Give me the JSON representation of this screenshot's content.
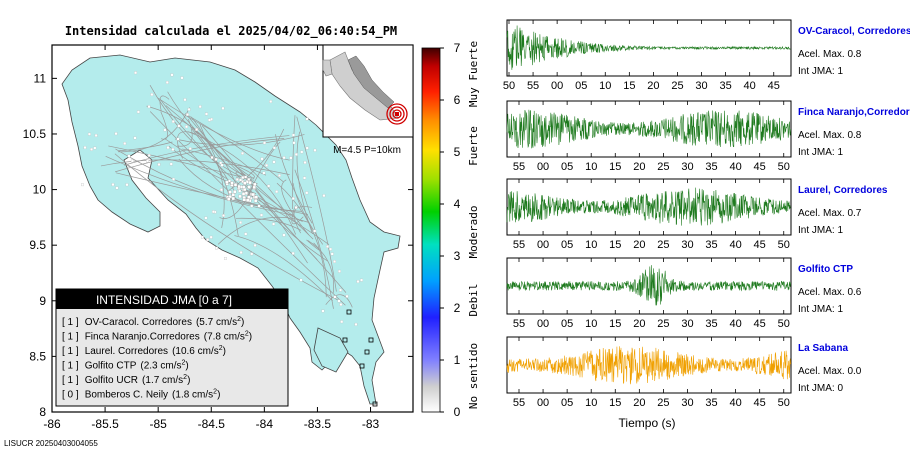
{
  "map": {
    "title": "Intensidad calculada el 2025/04/02_06:40:54_PM",
    "footer_id": "LISUCR 20250403004055",
    "x_ticks": [
      "-86",
      "-85.5",
      "-85",
      "-84.5",
      "-84",
      "-83.5",
      "-83"
    ],
    "y_ticks": [
      "11",
      "10.5",
      "10",
      "9.5",
      "9",
      "8.5",
      "8"
    ],
    "inset_label": "M=4.5 P=10km",
    "colorbar": {
      "ticks": [
        "7",
        "6",
        "5",
        "4",
        "3",
        "2",
        "1",
        "0"
      ],
      "categories": [
        "Muy Fuerte",
        "Fuerte",
        "Moderado",
        "Debil",
        "No sentido"
      ]
    },
    "legend": {
      "title": "INTENSIDAD JMA [0 a 7]",
      "items": [
        {
          "int": "[ 1 ]",
          "name": "OV-Caracol. Corredores",
          "accel": "(5.7 cm/s",
          "sup": "2",
          "close": ")"
        },
        {
          "int": "[ 1 ]",
          "name": "Finca Naranjo.Corredores",
          "accel": "(7.8 cm/s",
          "sup": "2",
          "close": ")"
        },
        {
          "int": "[ 1 ]",
          "name": "Laurel. Corredores",
          "accel": "(10.6 cm/s",
          "sup": "2",
          "close": ")"
        },
        {
          "int": "[ 1 ]",
          "name": "Golfito CTP",
          "accel": "(2.3 cm/s",
          "sup": "2",
          "close": ")"
        },
        {
          "int": "[ 1 ]",
          "name": "Golfito UCR",
          "accel": "(1.7 cm/s",
          "sup": "2",
          "close": ")"
        },
        {
          "int": "[ 0 ]",
          "name": "Bomberos C. Neily",
          "accel": "(1.8 cm/s",
          "sup": "2",
          "close": ")"
        }
      ]
    },
    "colors": {
      "land": "#b4ecec",
      "road": "#9a9a9a",
      "station": "#000000",
      "epicenter": "#d00000"
    }
  },
  "traces": {
    "xlabel": "Tiempo (s)",
    "stations": [
      {
        "name": "OV-Caracol, Corredores",
        "accel": "Acel. Max. 0.8",
        "int": "Int JMA: 1",
        "color": "#1e7a1e",
        "ticks": [
          "50",
          "55",
          "00",
          "05",
          "10",
          "15",
          "20",
          "25",
          "30",
          "35",
          "40",
          "45"
        ],
        "tick_start": 50,
        "amp_profile": "decay"
      },
      {
        "name": "Finca Naranjo,Corredores",
        "accel": "Acel. Max. 0.8",
        "int": "Int JMA: 1",
        "color": "#1e7a1e",
        "ticks": [
          "55",
          "00",
          "05",
          "10",
          "15",
          "20",
          "25",
          "30",
          "35",
          "40",
          "45",
          "50"
        ],
        "tick_start": 55,
        "amp_profile": "steady"
      },
      {
        "name": "Laurel, Corredores",
        "accel": "Acel. Max. 0.7",
        "int": "Int JMA: 1",
        "color": "#1e7a1e",
        "ticks": [
          "55",
          "00",
          "05",
          "10",
          "15",
          "20",
          "25",
          "30",
          "35",
          "40",
          "45",
          "50"
        ],
        "tick_start": 55,
        "amp_profile": "steady"
      },
      {
        "name": "Golfito CTP",
        "accel": "Acel. Max. 0.6",
        "int": "Int JMA: 1",
        "color": "#1e7a1e",
        "ticks": [
          "55",
          "00",
          "05",
          "10",
          "15",
          "20",
          "25",
          "30",
          "35",
          "40",
          "45",
          "50"
        ],
        "tick_start": 55,
        "amp_profile": "burst"
      },
      {
        "name": "La Sabana",
        "accel": "Acel. Max. 0.0",
        "int": "Int JMA: 0",
        "color": "#f0a000",
        "ticks": [
          "55",
          "00",
          "05",
          "10",
          "15",
          "20",
          "25",
          "30",
          "35",
          "40",
          "45",
          "50"
        ],
        "tick_start": 55,
        "amp_profile": "steady"
      }
    ]
  },
  "chart_data": [
    {
      "type": "heatmap",
      "title": "Intensidad calculada el 2025/04/02_06:40:54_PM",
      "xlabel": "",
      "ylabel": "",
      "xlim": [
        -86,
        -82.6
      ],
      "ylim": [
        8,
        11.3
      ],
      "colorbar_range": [
        0,
        7
      ],
      "stations": [
        {
          "name": "OV-Caracol. Corredores",
          "jma": 1,
          "pga_cm_s2": 5.7
        },
        {
          "name": "Finca Naranjo.Corredores",
          "jma": 1,
          "pga_cm_s2": 7.8
        },
        {
          "name": "Laurel. Corredores",
          "jma": 1,
          "pga_cm_s2": 10.6
        },
        {
          "name": "Golfito CTP",
          "jma": 1,
          "pga_cm_s2": 2.3
        },
        {
          "name": "Golfito UCR",
          "jma": 1,
          "pga_cm_s2": 1.7
        },
        {
          "name": "Bomberos C. Neily",
          "jma": 0,
          "pga_cm_s2": 1.8
        }
      ]
    },
    {
      "type": "line",
      "xlabel": "Tiempo (s)",
      "series": [
        {
          "name": "OV-Caracol, Corredores",
          "acel_max": 0.8,
          "int_jma": 1
        },
        {
          "name": "Finca Naranjo,Corredores",
          "acel_max": 0.8,
          "int_jma": 1
        },
        {
          "name": "Laurel, Corredores",
          "acel_max": 0.7,
          "int_jma": 1
        },
        {
          "name": "Golfito CTP",
          "acel_max": 0.6,
          "int_jma": 1
        },
        {
          "name": "La Sabana",
          "acel_max": 0.0,
          "int_jma": 0
        }
      ]
    }
  ]
}
